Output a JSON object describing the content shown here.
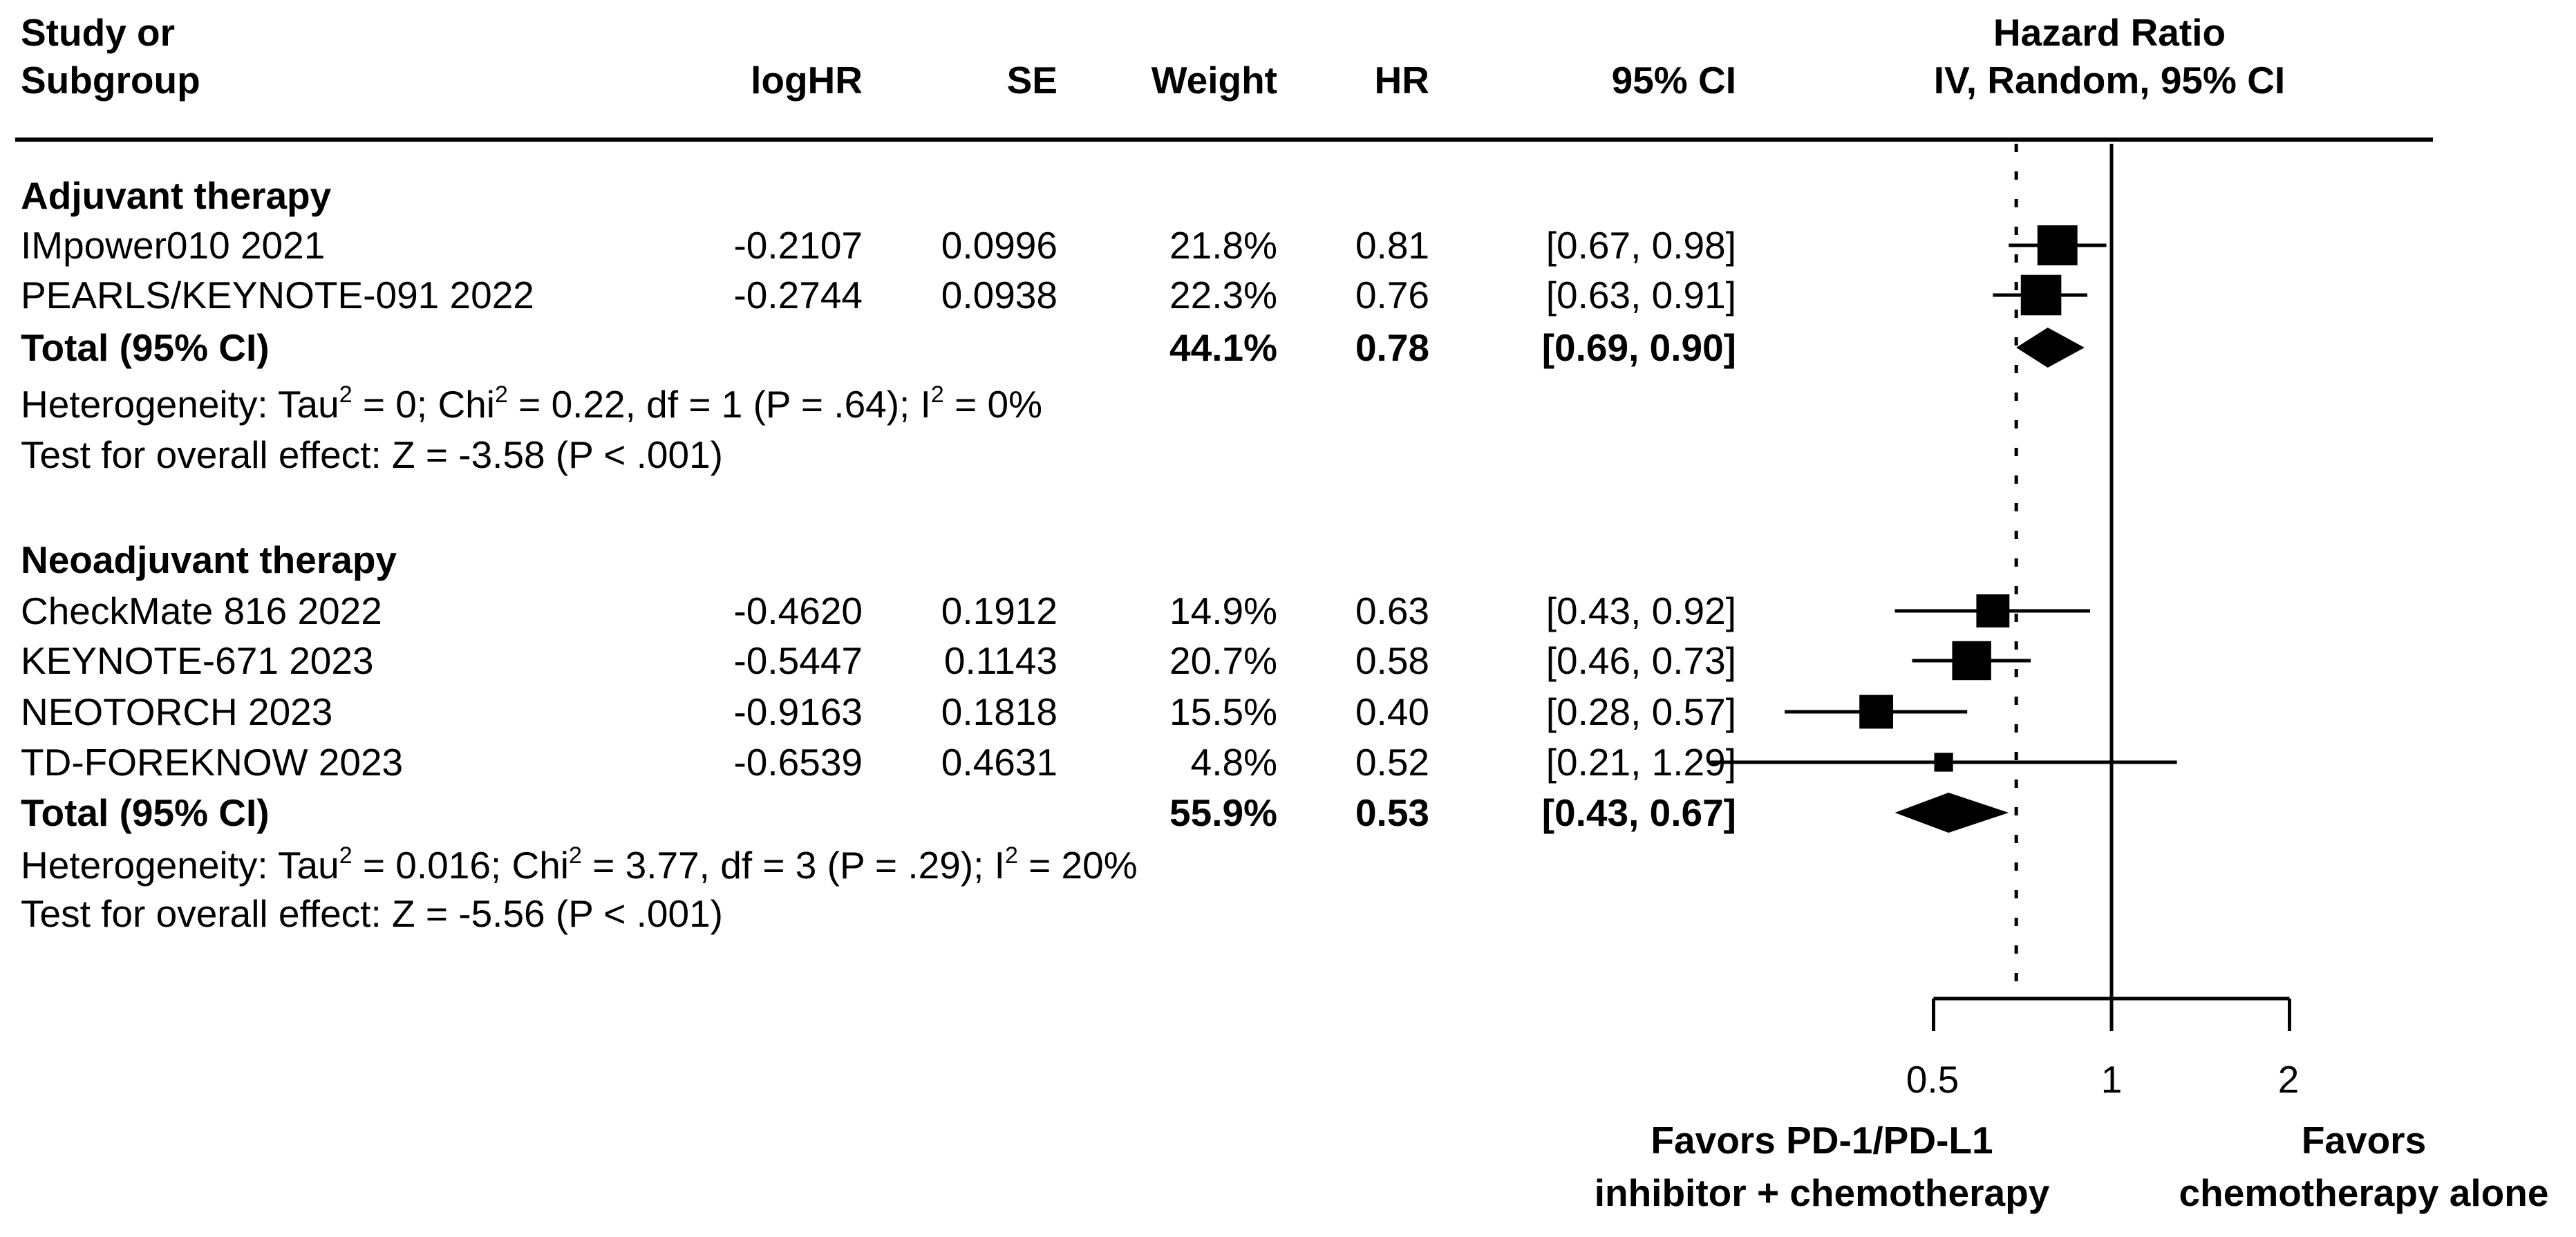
{
  "figure": {
    "background": "#ffffff",
    "text_color": "#000000"
  },
  "header": {
    "study_line1": "Study or",
    "study_line2": "Subgroup",
    "loghr": "logHR",
    "se": "SE",
    "weight": "Weight",
    "hr": "HR",
    "ci": "95% CI",
    "effect_line1": "Hazard Ratio",
    "effect_line2": "IV, Random, 95% CI"
  },
  "axis": {
    "tick_labels": [
      "0.5",
      "1",
      "2"
    ]
  },
  "footer": {
    "favors_left_line1": "Favors PD-1/PD-L1",
    "favors_left_line2": "inhibitor + chemotherapy",
    "favors_right_line1": "Favors",
    "favors_right_line2": "chemotherapy alone"
  },
  "chart_data": {
    "type": "forest",
    "effect_measure": "Hazard Ratio",
    "model": "IV, Random, 95% CI",
    "x_scale": "log",
    "x_ticks": [
      0.5,
      1,
      2
    ],
    "no_effect_value": 1,
    "dashed_overall_hr": 0.69,
    "groups": [
      {
        "label": "Adjuvant therapy",
        "studies": [
          {
            "name": "IMpower010 2021",
            "loghr": "-0.2107",
            "se": "0.0996",
            "weight": 21.8,
            "weight_text": "21.8%",
            "hr": 0.81,
            "hr_text": "0.81",
            "ci_low": 0.67,
            "ci_high": 0.98,
            "ci_text": "[0.67, 0.98]"
          },
          {
            "name": "PEARLS/KEYNOTE-091 2022",
            "loghr": "-0.2744",
            "se": "0.0938",
            "weight": 22.3,
            "weight_text": "22.3%",
            "hr": 0.76,
            "hr_text": "0.76",
            "ci_low": 0.63,
            "ci_high": 0.91,
            "ci_text": "[0.63, 0.91]"
          }
        ],
        "total": {
          "label": "Total (95% CI)",
          "weight_text": "44.1%",
          "hr": 0.78,
          "hr_text": "0.78",
          "ci_low": 0.69,
          "ci_high": 0.9,
          "ci_text": "[0.69, 0.90]"
        },
        "heterogeneity": [
          {
            "text": "Heterogeneity: Tau",
            "sup": false
          },
          {
            "text": "2",
            "sup": true
          },
          {
            "text": " = 0; Chi",
            "sup": false
          },
          {
            "text": "2",
            "sup": true
          },
          {
            "text": " = 0.22, df = 1 (P = .64); I",
            "sup": false
          },
          {
            "text": "2",
            "sup": true
          },
          {
            "text": " = 0%",
            "sup": false
          }
        ],
        "test": "Test for overall effect: Z = -3.58 (P < .001)"
      },
      {
        "label": "Neoadjuvant therapy",
        "studies": [
          {
            "name": "CheckMate 816 2022",
            "loghr": "-0.4620",
            "se": "0.1912",
            "weight": 14.9,
            "weight_text": "14.9%",
            "hr": 0.63,
            "hr_text": "0.63",
            "ci_low": 0.43,
            "ci_high": 0.92,
            "ci_text": "[0.43, 0.92]"
          },
          {
            "name": "KEYNOTE-671 2023",
            "loghr": "-0.5447",
            "se": "0.1143",
            "weight": 20.7,
            "weight_text": "20.7%",
            "hr": 0.58,
            "hr_text": "0.58",
            "ci_low": 0.46,
            "ci_high": 0.73,
            "ci_text": "[0.46, 0.73]"
          },
          {
            "name": "NEOTORCH 2023",
            "loghr": "-0.9163",
            "se": "0.1818",
            "weight": 15.5,
            "weight_text": "15.5%",
            "hr": 0.4,
            "hr_text": "0.40",
            "ci_low": 0.28,
            "ci_high": 0.57,
            "ci_text": "[0.28, 0.57]"
          },
          {
            "name": "TD-FOREKNOW 2023",
            "loghr": "-0.6539",
            "se": "0.4631",
            "weight": 4.8,
            "weight_text": "4.8%",
            "hr": 0.52,
            "hr_text": "0.52",
            "ci_low": 0.21,
            "ci_high": 1.29,
            "ci_text": "[0.21, 1.29]"
          }
        ],
        "total": {
          "label": "Total (95% CI)",
          "weight_text": "55.9%",
          "hr": 0.53,
          "hr_text": "0.53",
          "ci_low": 0.43,
          "ci_high": 0.67,
          "ci_text": "[0.43, 0.67]"
        },
        "heterogeneity": [
          {
            "text": "Heterogeneity: Tau",
            "sup": false
          },
          {
            "text": "2",
            "sup": true
          },
          {
            "text": " = 0.016; Chi",
            "sup": false
          },
          {
            "text": "2",
            "sup": true
          },
          {
            "text": " = 3.77, df = 3 (P = .29); I",
            "sup": false
          },
          {
            "text": "2",
            "sup": true
          },
          {
            "text": " = 20%",
            "sup": false
          }
        ],
        "test": "Test for overall effect: Z = -5.56 (P < .001)"
      }
    ]
  }
}
